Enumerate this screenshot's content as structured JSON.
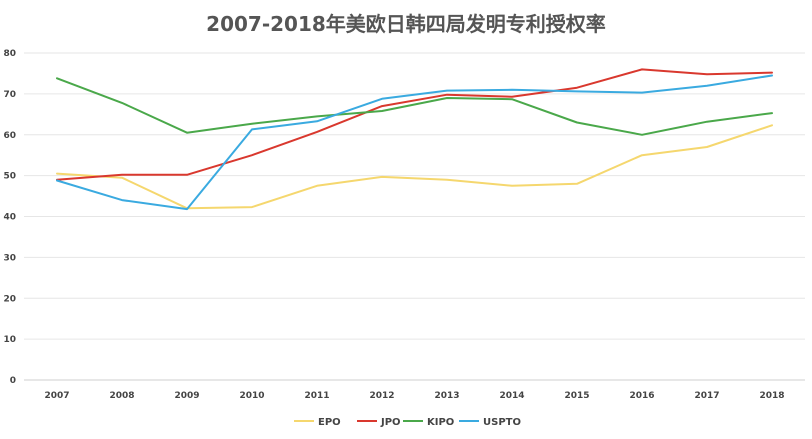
{
  "chart_data": {
    "type": "line",
    "title": "2007-2018年美欧日韩四局发明专利授权率",
    "xlabel": "",
    "ylabel": "",
    "categories": [
      "2007",
      "2008",
      "2009",
      "2010",
      "2011",
      "2012",
      "2013",
      "2014",
      "2015",
      "2016",
      "2017",
      "2018"
    ],
    "ylim": [
      0,
      80
    ],
    "yticks": [
      0,
      10,
      20,
      30,
      40,
      50,
      60,
      70,
      80
    ],
    "grid": true,
    "legend_position": "bottom",
    "series": [
      {
        "name": "EPO",
        "color": "#F5D76E",
        "values": [
          50.5,
          49.5,
          42.0,
          42.3,
          47.5,
          49.7,
          49.0,
          47.5,
          48.0,
          55.0,
          57.0,
          62.3
        ]
      },
      {
        "name": "JPO",
        "color": "#D9382E",
        "values": [
          49.0,
          50.2,
          50.2,
          55.0,
          60.7,
          67.0,
          69.8,
          69.3,
          71.5,
          76.0,
          74.8,
          75.2
        ]
      },
      {
        "name": "KIPO",
        "color": "#4AA84A",
        "values": [
          73.8,
          67.8,
          60.5,
          62.7,
          64.5,
          65.8,
          69.0,
          68.7,
          63.0,
          60.0,
          63.2,
          65.3
        ]
      },
      {
        "name": "USPTO",
        "color": "#3AAAE0",
        "values": [
          48.8,
          44.0,
          41.8,
          61.3,
          63.3,
          68.8,
          70.8,
          71.0,
          70.6,
          70.3,
          72.0,
          74.5
        ]
      }
    ]
  }
}
